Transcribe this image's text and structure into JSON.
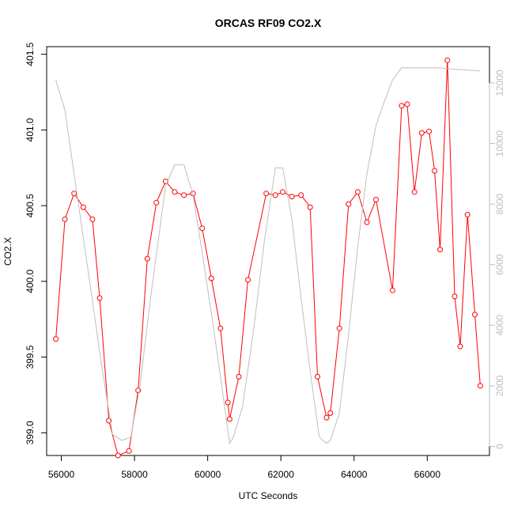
{
  "chart_data": {
    "type": "line",
    "title": "ORCAS RF09 CO2.X",
    "xlabel": "UTC Seconds",
    "ylabel": "CO2.X",
    "xlim": [
      55600,
      67700
    ],
    "ylim": [
      398.85,
      401.55
    ],
    "y2lim": [
      -300,
      13200
    ],
    "x_ticks": [
      56000,
      58000,
      60000,
      62000,
      64000,
      66000
    ],
    "y_ticks": [
      399.0,
      399.5,
      400.0,
      400.5,
      401.0,
      401.5
    ],
    "y2_ticks": [
      0,
      2000,
      4000,
      6000,
      8000,
      10000,
      12000
    ],
    "colors": {
      "primary": "#ff0000",
      "secondary": "#bebebe",
      "axis": "#000000"
    },
    "grid": false,
    "series": [
      {
        "axis": "left",
        "color": "#ff0000",
        "style": "line-points",
        "x": [
          55850,
          56100,
          56350,
          56600,
          56850,
          57050,
          57300,
          57550,
          57850,
          58100,
          58350,
          58600,
          58850,
          59100,
          59350,
          59600,
          59850,
          60100,
          60350,
          60550,
          60600,
          60850,
          61100,
          61600,
          61850,
          62050,
          62300,
          62550,
          62800,
          63000,
          63250,
          63350,
          63600,
          63850,
          64100,
          64350,
          64600,
          65050,
          65300,
          65450,
          65650,
          65850,
          66050,
          66200,
          66350,
          66550,
          66750,
          66900,
          67100,
          67300,
          67450
        ],
        "y": [
          399.62,
          400.41,
          400.58,
          400.49,
          400.41,
          399.89,
          399.08,
          398.85,
          398.88,
          399.28,
          400.15,
          400.52,
          400.66,
          400.59,
          400.57,
          400.58,
          400.35,
          400.02,
          399.69,
          399.2,
          399.09,
          399.37,
          400.01,
          400.58,
          400.57,
          400.59,
          400.56,
          400.57,
          400.49,
          399.37,
          399.1,
          399.13,
          399.69,
          400.51,
          400.59,
          400.39,
          400.54,
          399.94,
          401.16,
          401.17,
          400.59,
          400.98,
          400.99,
          400.73,
          400.21,
          401.46,
          399.9,
          399.57,
          400.44,
          399.78,
          399.31
        ]
      },
      {
        "axis": "right",
        "color": "#bebebe",
        "style": "line",
        "x": [
          55850,
          56100,
          56350,
          56600,
          56850,
          57100,
          57400,
          57650,
          57900,
          58150,
          58450,
          58850,
          59100,
          59350,
          59600,
          59850,
          60100,
          60350,
          60600,
          60700,
          60950,
          61250,
          61550,
          61850,
          62050,
          62300,
          62550,
          62800,
          63050,
          63250,
          63350,
          63600,
          63850,
          64100,
          64350,
          64600,
          64800,
          65050,
          65300,
          65800,
          66300,
          66800,
          67450
        ],
        "y": [
          12100,
          11100,
          9000,
          6900,
          4800,
          2700,
          400,
          200,
          300,
          2000,
          5000,
          8600,
          9300,
          9300,
          8300,
          6400,
          4400,
          2300,
          100,
          300,
          1300,
          3800,
          6800,
          9200,
          9200,
          7500,
          4900,
          2500,
          300,
          100,
          200,
          1100,
          3700,
          6600,
          9000,
          10600,
          11300,
          12100,
          12500,
          12500,
          12500,
          12450,
          12400
        ]
      }
    ]
  }
}
